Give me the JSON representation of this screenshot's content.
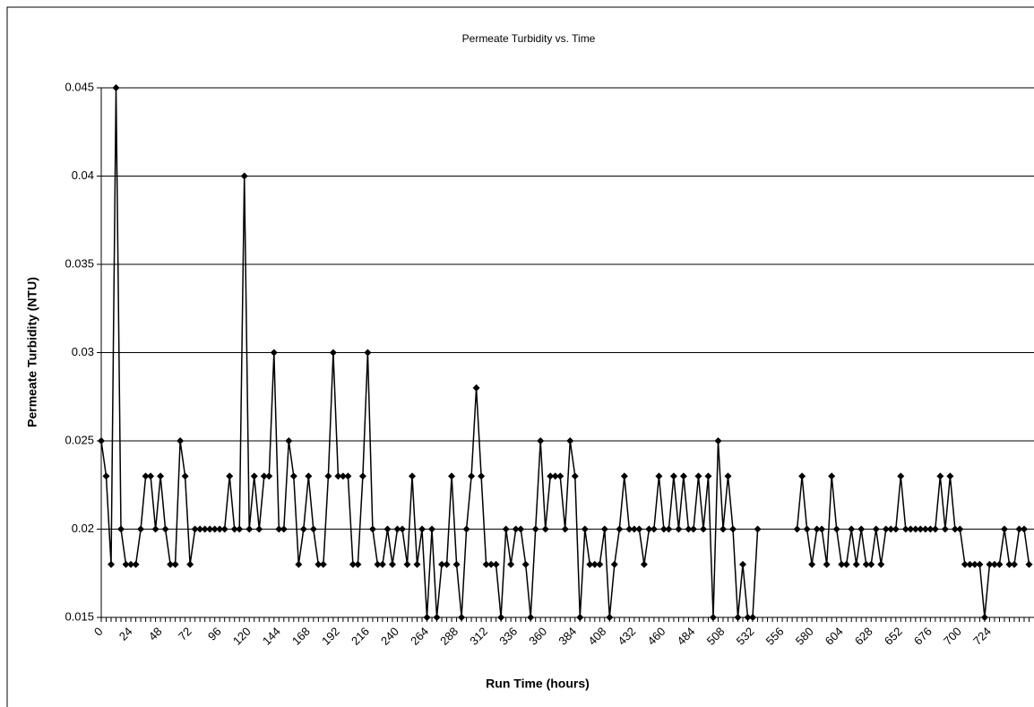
{
  "chart_data": {
    "type": "line",
    "title": "Permeate  Turbidity vs. Time",
    "x_label": "Run Time (hours)",
    "y_label": "Permeate Turbidity (NTU)",
    "categories": [
      "0",
      null,
      null,
      null,
      null,
      null,
      "24",
      null,
      null,
      null,
      null,
      null,
      "48",
      null,
      null,
      null,
      null,
      null,
      "72",
      null,
      null,
      null,
      null,
      null,
      "96",
      null,
      null,
      null,
      null,
      null,
      "120",
      null,
      null,
      null,
      null,
      null,
      "144",
      null,
      null,
      null,
      null,
      null,
      "168",
      null,
      null,
      null,
      null,
      null,
      "192",
      null,
      null,
      null,
      null,
      null,
      "216",
      null,
      null,
      null,
      null,
      null,
      "240",
      null,
      null,
      null,
      null,
      null,
      "264",
      null,
      null,
      null,
      null,
      null,
      "288",
      null,
      null,
      null,
      null,
      null,
      "312",
      null,
      null,
      null,
      null,
      null,
      "336",
      null,
      null,
      null,
      null,
      null,
      "360",
      null,
      null,
      null,
      null,
      null,
      "384",
      null,
      null,
      null,
      null,
      null,
      "408",
      null,
      null,
      null,
      null,
      null,
      "432",
      null,
      null,
      null,
      null,
      null,
      "460",
      null,
      null,
      null,
      null,
      null,
      "484",
      null,
      null,
      null,
      null,
      null,
      "508",
      null,
      null,
      null,
      null,
      null,
      "532",
      null,
      null,
      null,
      null,
      null,
      "556",
      null,
      null,
      null,
      null,
      null,
      "580",
      null,
      null,
      null,
      null,
      null,
      "604",
      null,
      null,
      null,
      null,
      null,
      "628",
      null,
      null,
      null,
      null,
      null,
      "652",
      null,
      null,
      null,
      null,
      null,
      "676",
      null,
      null,
      null,
      null,
      null,
      "700",
      null,
      null,
      null,
      null,
      null,
      "724",
      null,
      null,
      null,
      null,
      null,
      null,
      null,
      null
    ],
    "series": [
      {
        "name": "Permeate Turbidity",
        "color": "#000000",
        "values": [
          0.025,
          0.023,
          0.018,
          0.045,
          0.02,
          0.018,
          0.018,
          0.018,
          0.02,
          0.023,
          0.023,
          0.02,
          0.023,
          0.02,
          0.018,
          0.018,
          0.025,
          0.023,
          0.018,
          0.02,
          0.02,
          0.02,
          0.02,
          0.02,
          0.02,
          0.02,
          0.023,
          0.02,
          0.02,
          0.04,
          0.02,
          0.023,
          0.02,
          0.023,
          0.023,
          0.03,
          0.02,
          0.02,
          0.025,
          0.023,
          0.018,
          0.02,
          0.023,
          0.02,
          0.018,
          0.018,
          0.023,
          0.03,
          0.023,
          0.023,
          0.023,
          0.018,
          0.018,
          0.023,
          0.03,
          0.02,
          0.018,
          0.018,
          0.02,
          0.018,
          0.02,
          0.02,
          0.018,
          0.023,
          0.018,
          0.02,
          0.015,
          0.02,
          0.015,
          0.018,
          0.018,
          0.023,
          0.018,
          0.015,
          0.02,
          0.023,
          0.028,
          0.023,
          0.018,
          0.018,
          0.018,
          0.015,
          0.02,
          0.018,
          0.02,
          0.02,
          0.018,
          0.015,
          0.02,
          0.025,
          0.02,
          0.023,
          0.023,
          0.023,
          0.02,
          0.025,
          0.023,
          0.015,
          0.02,
          0.018,
          0.018,
          0.018,
          0.02,
          0.015,
          0.018,
          0.02,
          0.023,
          0.02,
          0.02,
          0.02,
          0.018,
          0.02,
          0.02,
          0.023,
          0.02,
          0.02,
          0.023,
          0.02,
          0.023,
          0.02,
          0.02,
          0.023,
          0.02,
          0.023,
          0.015,
          0.025,
          0.02,
          0.023,
          0.02,
          0.015,
          0.018,
          0.015,
          0.015,
          0.02,
          null,
          null,
          null,
          null,
          null,
          null,
          null,
          0.02,
          0.023,
          0.02,
          0.018,
          0.02,
          0.02,
          0.018,
          0.023,
          0.02,
          0.018,
          0.018,
          0.02,
          0.018,
          0.02,
          0.018,
          0.018,
          0.02,
          0.018,
          0.02,
          0.02,
          0.02,
          0.023,
          0.02,
          0.02,
          0.02,
          0.02,
          0.02,
          0.02,
          0.02,
          0.023,
          0.02,
          0.023,
          0.02,
          0.02,
          0.018,
          0.018,
          0.018,
          0.018,
          0.015,
          0.018,
          0.018,
          0.018,
          0.02,
          0.018,
          0.018,
          0.02,
          0.02,
          0.018
        ]
      }
    ],
    "ylim": [
      0.015,
      0.045
    ],
    "yticks": [
      0.015,
      0.02,
      0.025,
      0.03,
      0.035,
      0.04,
      0.045
    ],
    "grid": true
  }
}
